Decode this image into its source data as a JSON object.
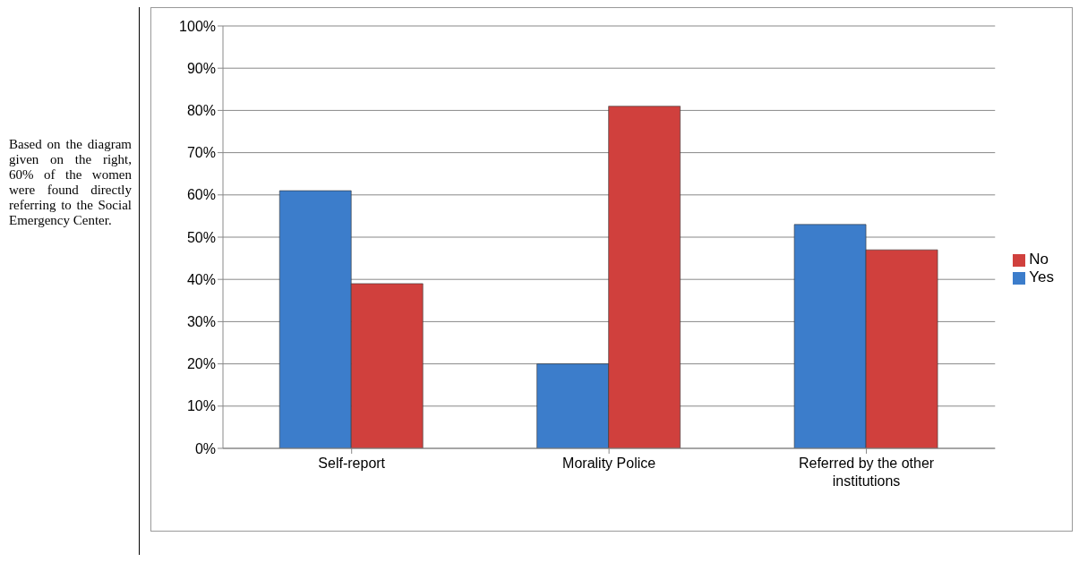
{
  "chart_data": {
    "type": "bar",
    "categories": [
      "Self-report",
      "Morality Police",
      "Referred by the other institutions"
    ],
    "series": [
      {
        "name": "Yes",
        "color": "#3c7dcb",
        "values": [
          61,
          20,
          53
        ]
      },
      {
        "name": "No",
        "color": "#d0403d",
        "values": [
          39,
          81,
          47
        ]
      }
    ],
    "ylim": [
      0,
      100
    ],
    "yticks": [
      {
        "value": 0,
        "label": "0%"
      },
      {
        "value": 10,
        "label": "10%"
      },
      {
        "value": 20,
        "label": "20%"
      },
      {
        "value": 30,
        "label": "30%"
      },
      {
        "value": 40,
        "label": "40%"
      },
      {
        "value": 50,
        "label": "50%"
      },
      {
        "value": 60,
        "label": "60%"
      },
      {
        "value": 70,
        "label": "70%"
      },
      {
        "value": 80,
        "label": "80%"
      },
      {
        "value": 90,
        "label": "90%"
      },
      {
        "value": 100,
        "label": "100%"
      }
    ],
    "grid": "y",
    "legend": "right",
    "annotations": [
      "Based on the diagram given on the right, 60% of the women were found directly referring to the Social Emergency Center."
    ]
  }
}
